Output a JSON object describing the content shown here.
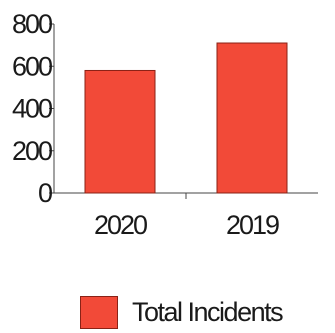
{
  "chart_data": {
    "type": "bar",
    "categories": [
      "2020",
      "2019"
    ],
    "series": [
      {
        "name": "Total Incidents",
        "values": [
          580,
          710
        ]
      }
    ],
    "ylim": [
      0,
      800
    ],
    "yticks": [
      0,
      200,
      400,
      600,
      800
    ],
    "grid": false,
    "legend_position": "bottom",
    "title": "",
    "xlabel": "",
    "ylabel": ""
  },
  "colors": {
    "bar_fill": "#f24a38",
    "bar_stroke": "#8a2216",
    "axis": "#444444"
  },
  "legend": {
    "label": "Total Incidents"
  }
}
